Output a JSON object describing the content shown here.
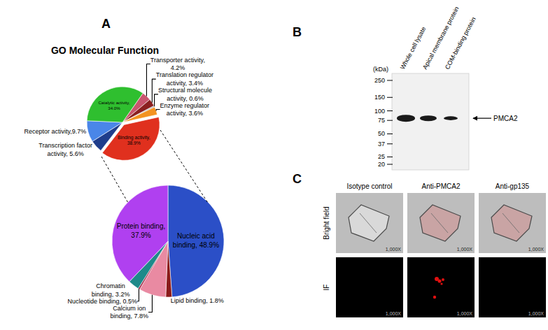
{
  "chart_data": [
    {
      "type": "pie",
      "title": "GO Molecular Function",
      "categories": [
        "Transporter activity",
        "Translation regulator activity",
        "Structural molecule activity",
        "Enzyme regulator activity",
        "Binding activity",
        "Transcription factor activity",
        "Receptor activity",
        "Catalytic activity"
      ],
      "values": [
        4.2,
        3.4,
        0.6,
        3.6,
        38.9,
        5.6,
        9.7,
        34.0
      ],
      "value_labels": [
        "Transporter activity,\n4.2%",
        "Translation regulator\nactivity, 3.4%",
        "Structural molecule\nactivity, 0.6%",
        "Enzyme regulator\nactivity, 3.6%",
        "Binding activity,\n38.9%",
        "Transcription factor\nactivity, 5.6%",
        "Receptor activity,9.7%",
        "Catalytic activity,\n34.0%"
      ],
      "colors": [
        "#c9566e",
        "#8b2020",
        "#b0b0b0",
        "#f39321",
        "#e0301e",
        "#1f3d8c",
        "#4a86e8",
        "#2fbf2f"
      ],
      "data_labels": true
    },
    {
      "type": "pie",
      "categories": [
        "Nucleic acid binding",
        "Lipid binding",
        "Calcium ion binding",
        "Nucleotide binding",
        "Chromatin binding",
        "Protein binding"
      ],
      "values": [
        48.9,
        1.8,
        7.8,
        0.5,
        3.2,
        37.9
      ],
      "value_labels": [
        "Nucleic acid\nbinding, 48.9%",
        "Lipid binding, 1.8%",
        "Calcium ion\nbinding, 7.8%",
        "Nucleotide binding, 0.5%",
        "Chromatin\nbinding, 3.2%",
        "Protein binding,\n37.9%"
      ],
      "colors": [
        "#2b4fc7",
        "#8b1a1a",
        "#e98aa2",
        "#a02040",
        "#1e8a8a",
        "#b040f0"
      ],
      "data_labels": true
    }
  ],
  "panel_labels": [
    "A",
    "B",
    "C"
  ],
  "western_blot": {
    "unit_label": "(kDa)",
    "markers": [
      250,
      150,
      100,
      75,
      50,
      37,
      25,
      20
    ],
    "lanes": [
      "Whole cell lysate",
      "Apical membrane protein",
      "COM-binding protein"
    ],
    "band_label": "PMCA2",
    "band_kDa": 80
  },
  "microscopy": {
    "columns": [
      "Isotype control",
      "Anti-PMCA2",
      "Anti-gp135"
    ],
    "rows": [
      "Bright field",
      "IF"
    ],
    "magnification": "1,000X"
  }
}
